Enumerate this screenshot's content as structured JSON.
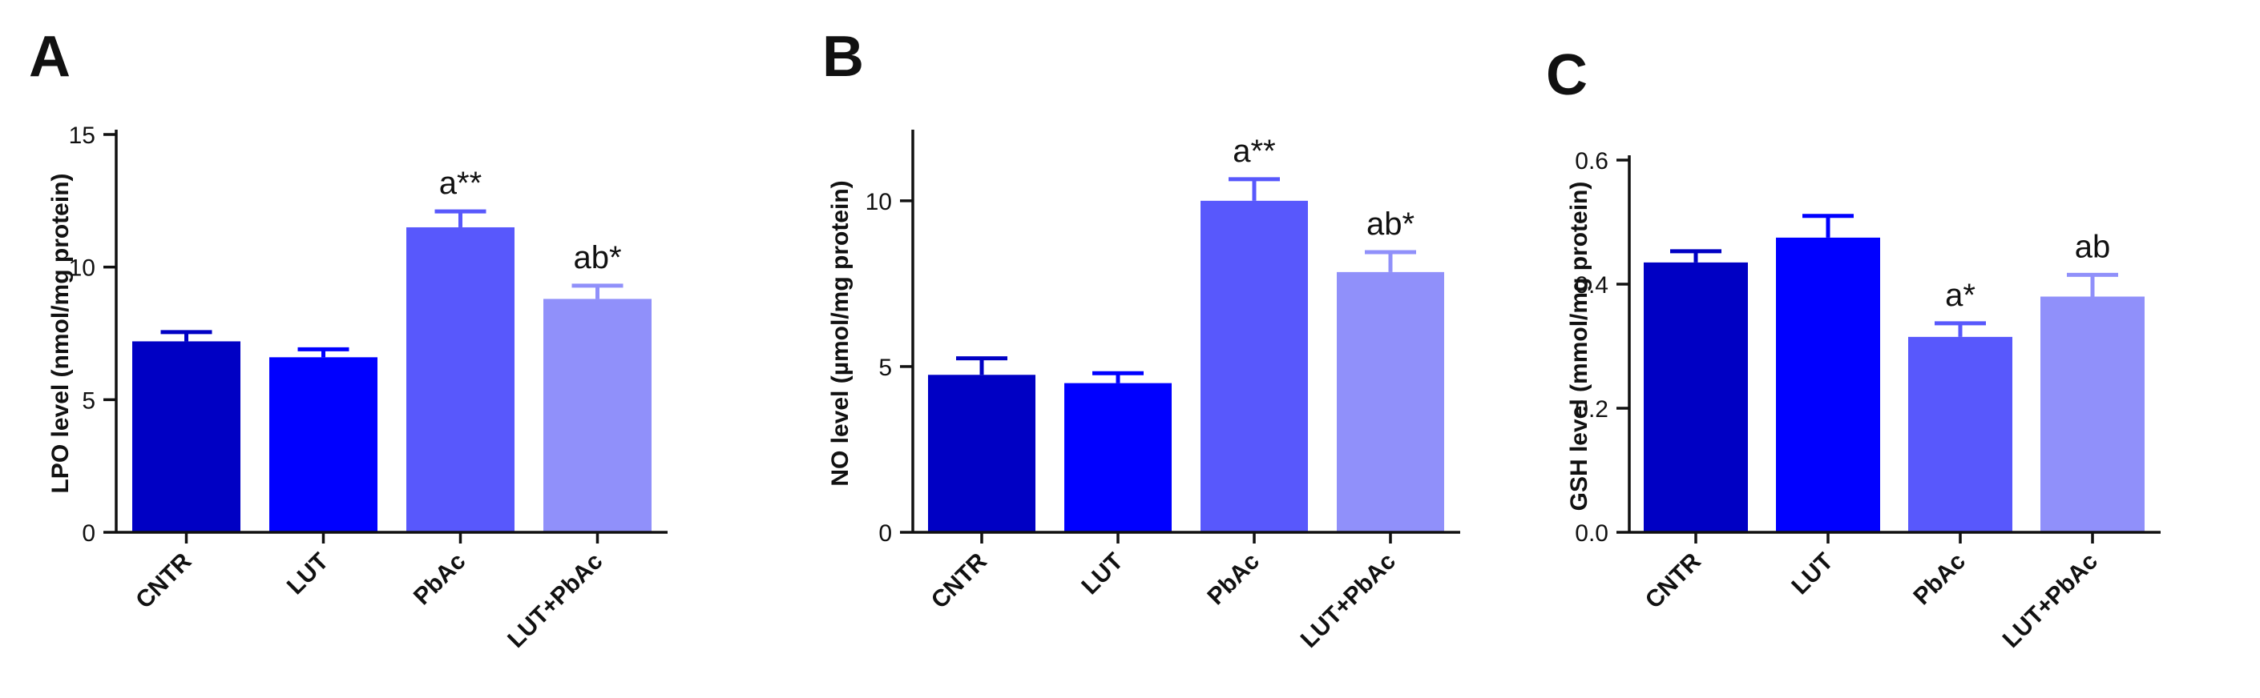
{
  "chart_data": [
    {
      "type": "bar",
      "panel_letter": "A",
      "categories": [
        "CNTR",
        "LUT",
        "PbAc",
        "LUT+PbAc"
      ],
      "values": [
        7.2,
        6.6,
        11.5,
        8.8
      ],
      "errors": [
        0.35,
        0.3,
        0.6,
        0.5
      ],
      "annotations": [
        "",
        "",
        "a**",
        "ab*"
      ],
      "ylabel": "LPO level (nmol/mg protein)",
      "ylim": [
        0,
        15
      ],
      "yticks": [
        0,
        5,
        10,
        15
      ],
      "ytick_labels": [
        "0",
        "5",
        "10",
        "15"
      ]
    },
    {
      "type": "bar",
      "panel_letter": "B",
      "categories": [
        "CNTR",
        "LUT",
        "PbAc",
        "LUT+PbAc"
      ],
      "values": [
        4.75,
        4.5,
        10.0,
        7.85
      ],
      "errors": [
        0.5,
        0.3,
        0.65,
        0.6
      ],
      "annotations": [
        "",
        "",
        "a**",
        "ab*"
      ],
      "ylabel": "NO level (µmol/mg protein)",
      "ylim": [
        0,
        12
      ],
      "yticks": [
        0,
        5,
        10
      ],
      "ytick_labels": [
        "0",
        "5",
        "10"
      ]
    },
    {
      "type": "bar",
      "panel_letter": "C",
      "categories": [
        "CNTR",
        "LUT",
        "PbAc",
        "LUT+PbAc"
      ],
      "values": [
        0.435,
        0.475,
        0.315,
        0.38
      ],
      "errors": [
        0.018,
        0.035,
        0.022,
        0.035
      ],
      "annotations": [
        "",
        "",
        "a*",
        "ab"
      ],
      "ylabel": "GSH level (mmol/mg protein)",
      "ylim": [
        0,
        0.6
      ],
      "yticks": [
        0,
        0.2,
        0.4,
        0.6
      ],
      "ytick_labels": [
        "0.0",
        "0.2",
        "0.4",
        "0.6"
      ]
    }
  ],
  "colors": {
    "CNTR": "#0000c4",
    "LUT": "#0000ff",
    "PbAc": "#5858fc",
    "LUT+PbAc": "#9090fa",
    "axis": "#111111"
  },
  "grid": false,
  "legend": "none"
}
